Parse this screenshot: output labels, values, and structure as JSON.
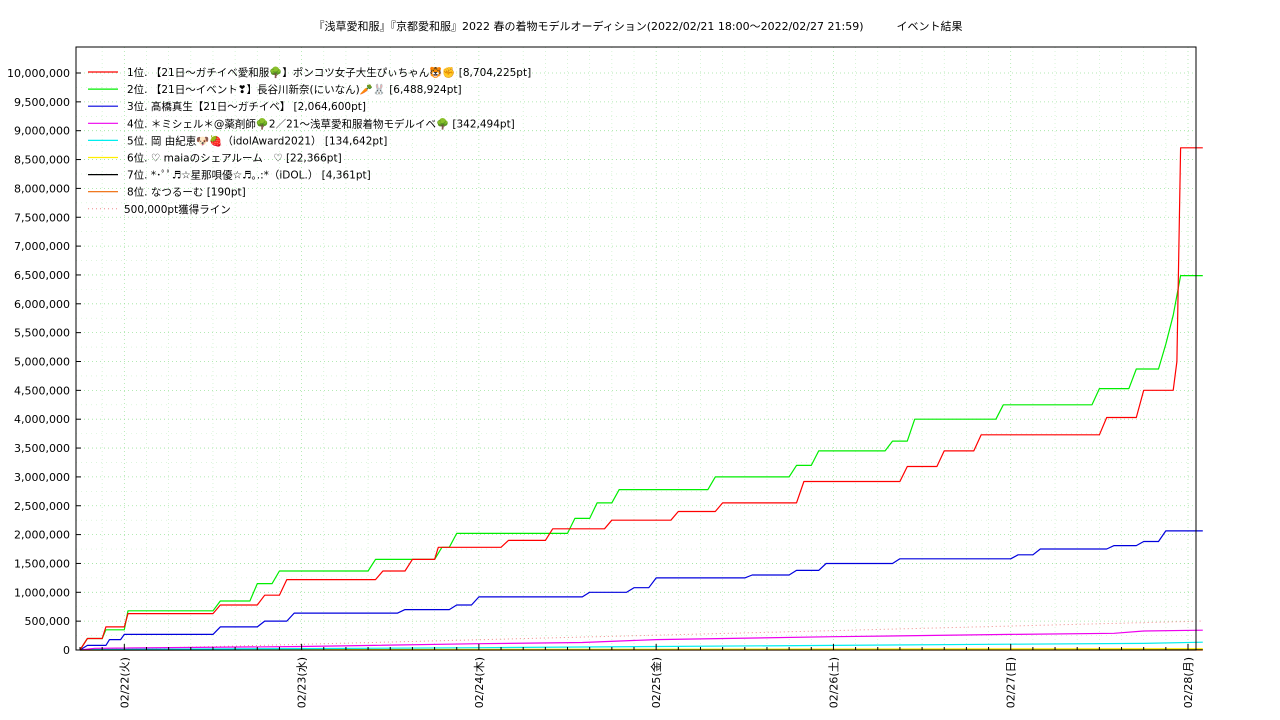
{
  "chart_data": {
    "type": "line",
    "title": "『浅草愛和服』『京都愛和服』2022 春の着物モデルオーディション(2022/02/21 18:00～2022/02/27 21:59)　　　イベント結果",
    "xlabel": "",
    "ylabel": "",
    "ylim": [
      0,
      10000000
    ],
    "y_ticks": [
      0,
      500000,
      1000000,
      1500000,
      2000000,
      2500000,
      3000000,
      3500000,
      4000000,
      4500000,
      5000000,
      5500000,
      6000000,
      6500000,
      7000000,
      7500000,
      8000000,
      8500000,
      9000000,
      9500000,
      10000000
    ],
    "y_tick_labels": [
      "0",
      "500,000",
      "1,000,000",
      "1,500,000",
      "2,000,000",
      "2,500,000",
      "3,000,000",
      "3,500,000",
      "4,000,000",
      "4,500,000",
      "5,000,000",
      "5,500,000",
      "6,000,000",
      "6,500,000",
      "7,000,000",
      "7,500,000",
      "8,000,000",
      "8,500,000",
      "9,000,000",
      "9,500,000",
      "10,000,000"
    ],
    "x_ticks": [
      0,
      24,
      48,
      72,
      96,
      120,
      144
    ],
    "x_tick_labels": [
      "02/22(火)",
      "02/23(水)",
      "02/24(木)",
      "02/25(金)",
      "02/26(土)",
      "02/27(日)",
      "02/28(月)"
    ],
    "xlim": [
      -6,
      144
    ],
    "grid": true,
    "legend_position": "top-left",
    "series": [
      {
        "name": "1位. 【21日〜ガチイベ愛和服🌳】ポンコツ女子大生ぴぃちゃん🐯✊ [8,704,225pt]",
        "color": "#ff0000",
        "points": [
          [
            -6,
            0
          ],
          [
            -5,
            200000
          ],
          [
            -3,
            200000
          ],
          [
            -2.5,
            400000
          ],
          [
            0,
            400000
          ],
          [
            0.5,
            630000
          ],
          [
            12,
            630000
          ],
          [
            13,
            780000
          ],
          [
            18,
            780000
          ],
          [
            19,
            950000
          ],
          [
            21,
            950000
          ],
          [
            22,
            1220000
          ],
          [
            34,
            1220000
          ],
          [
            35,
            1370000
          ],
          [
            38,
            1370000
          ],
          [
            39,
            1570000
          ],
          [
            42,
            1570000
          ],
          [
            42.5,
            1780000
          ],
          [
            51,
            1780000
          ],
          [
            52,
            1900000
          ],
          [
            57,
            1900000
          ],
          [
            58,
            2100000
          ],
          [
            65,
            2100000
          ],
          [
            66,
            2250000
          ],
          [
            74,
            2250000
          ],
          [
            75,
            2400000
          ],
          [
            80,
            2400000
          ],
          [
            81,
            2550000
          ],
          [
            91,
            2550000
          ],
          [
            92,
            2920000
          ],
          [
            105,
            2920000
          ],
          [
            106,
            3180000
          ],
          [
            110,
            3180000
          ],
          [
            111,
            3450000
          ],
          [
            115,
            3450000
          ],
          [
            116,
            3730000
          ],
          [
            132,
            3730000
          ],
          [
            133,
            4030000
          ],
          [
            137,
            4030000
          ],
          [
            138,
            4500000
          ],
          [
            142,
            4500000
          ],
          [
            142.5,
            5000000
          ],
          [
            143,
            8704225
          ],
          [
            146,
            8704225
          ]
        ]
      },
      {
        "name": "2位. 【21日〜イベント❣】長谷川新奈(にいなん)🥕🐰 [6,488,924pt]",
        "color": "#00ee00",
        "points": [
          [
            -6,
            0
          ],
          [
            -5,
            200000
          ],
          [
            -3,
            200000
          ],
          [
            -2.5,
            350000
          ],
          [
            0,
            350000
          ],
          [
            0.5,
            680000
          ],
          [
            12,
            680000
          ],
          [
            13,
            850000
          ],
          [
            17,
            850000
          ],
          [
            18,
            1150000
          ],
          [
            20,
            1150000
          ],
          [
            21,
            1370000
          ],
          [
            33,
            1370000
          ],
          [
            34,
            1570000
          ],
          [
            42,
            1570000
          ],
          [
            43,
            1780000
          ],
          [
            44,
            1780000
          ],
          [
            45,
            2020000
          ],
          [
            60,
            2020000
          ],
          [
            61,
            2280000
          ],
          [
            63,
            2280000
          ],
          [
            64,
            2550000
          ],
          [
            66,
            2550000
          ],
          [
            67,
            2780000
          ],
          [
            79,
            2780000
          ],
          [
            80,
            3000000
          ],
          [
            90,
            3000000
          ],
          [
            91,
            3200000
          ],
          [
            93,
            3200000
          ],
          [
            94,
            3450000
          ],
          [
            103,
            3450000
          ],
          [
            104,
            3620000
          ],
          [
            106,
            3620000
          ],
          [
            107,
            4000000
          ],
          [
            118,
            4000000
          ],
          [
            119,
            4250000
          ],
          [
            131,
            4250000
          ],
          [
            132,
            4530000
          ],
          [
            136,
            4530000
          ],
          [
            137,
            4870000
          ],
          [
            140,
            4870000
          ],
          [
            141,
            5300000
          ],
          [
            142,
            5800000
          ],
          [
            143,
            6489000
          ],
          [
            146,
            6489000
          ]
        ]
      },
      {
        "name": "3位. 髙橋真生【21日〜ガチイベ】 [2,064,600pt]",
        "color": "#0000dd",
        "points": [
          [
            -6,
            0
          ],
          [
            -5,
            80000
          ],
          [
            -2.5,
            80000
          ],
          [
            -2,
            180000
          ],
          [
            -0.5,
            180000
          ],
          [
            0,
            270000
          ],
          [
            12,
            270000
          ],
          [
            13,
            400000
          ],
          [
            18,
            400000
          ],
          [
            19,
            500000
          ],
          [
            22,
            500000
          ],
          [
            23,
            640000
          ],
          [
            37,
            640000
          ],
          [
            38,
            700000
          ],
          [
            44,
            700000
          ],
          [
            45,
            780000
          ],
          [
            47,
            780000
          ],
          [
            48,
            920000
          ],
          [
            62,
            920000
          ],
          [
            63,
            1000000
          ],
          [
            68,
            1000000
          ],
          [
            69,
            1080000
          ],
          [
            71,
            1080000
          ],
          [
            72,
            1250000
          ],
          [
            84,
            1250000
          ],
          [
            85,
            1300000
          ],
          [
            90,
            1300000
          ],
          [
            91,
            1380000
          ],
          [
            94,
            1380000
          ],
          [
            95,
            1500000
          ],
          [
            104,
            1500000
          ],
          [
            105,
            1580000
          ],
          [
            120,
            1580000
          ],
          [
            121,
            1650000
          ],
          [
            123,
            1650000
          ],
          [
            124,
            1750000
          ],
          [
            133,
            1750000
          ],
          [
            134,
            1810000
          ],
          [
            137,
            1810000
          ],
          [
            138,
            1880000
          ],
          [
            140,
            1880000
          ],
          [
            141,
            2064600
          ],
          [
            146,
            2064600
          ]
        ]
      },
      {
        "name": "4位. ＊ミシェル＊@薬剤師🌳2／21〜浅草愛和服着物モデルイベ🌳 [342,494pt]",
        "color": "#ee00ee",
        "points": [
          [
            -6,
            0
          ],
          [
            -4,
            30000
          ],
          [
            24,
            60000
          ],
          [
            48,
            110000
          ],
          [
            62,
            130000
          ],
          [
            72,
            180000
          ],
          [
            96,
            230000
          ],
          [
            120,
            270000
          ],
          [
            134,
            290000
          ],
          [
            138,
            330000
          ],
          [
            146,
            342494
          ]
        ]
      },
      {
        "name": "5位. 岡 由紀恵🐶🍓（idolAward2021） [134,642pt]",
        "color": "#00eeee",
        "points": [
          [
            -6,
            0
          ],
          [
            -4,
            10000
          ],
          [
            24,
            25000
          ],
          [
            48,
            40000
          ],
          [
            72,
            60000
          ],
          [
            96,
            80000
          ],
          [
            120,
            100000
          ],
          [
            138,
            115000
          ],
          [
            146,
            134642
          ]
        ]
      },
      {
        "name": "6位. ♡ maiaのシェアルーム　♡ [22,366pt]",
        "color": "#ffee00",
        "points": [
          [
            -6,
            0
          ],
          [
            24,
            8000
          ],
          [
            72,
            14000
          ],
          [
            120,
            19000
          ],
          [
            146,
            22366
          ]
        ]
      },
      {
        "name": "7位. *･ﾟﾟ♬☆星那唄優☆♬｡.:*（iDOL.） [4,361pt]",
        "color": "#000000",
        "points": [
          [
            -6,
            0
          ],
          [
            48,
            2000
          ],
          [
            146,
            4361
          ]
        ]
      },
      {
        "name": "8位. なつるーむ [190pt]",
        "color": "#ee6600",
        "points": [
          [
            -6,
            0
          ],
          [
            146,
            190
          ]
        ]
      }
    ],
    "reference_lines": [
      {
        "name": "500,000pt獲得ライン",
        "color": "#ee8888",
        "style": "dotted",
        "points": [
          [
            -6,
            0
          ],
          [
            146,
            500000
          ]
        ]
      }
    ]
  }
}
